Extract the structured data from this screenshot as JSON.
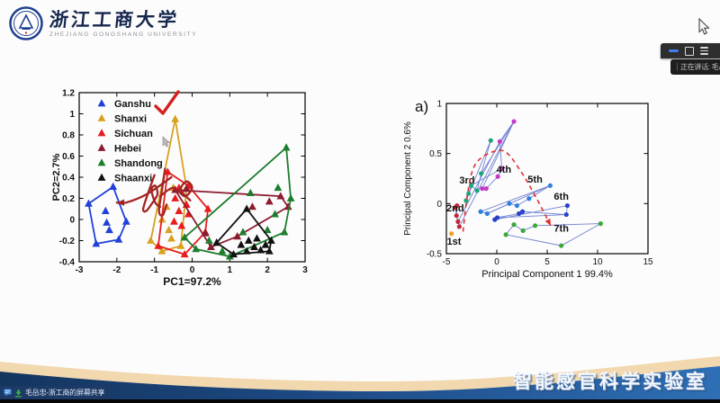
{
  "slide": {
    "logo": {
      "cn": "浙江工商大学",
      "en": "ZHEJIANG GONGSHANG UNIVERSITY"
    },
    "footer_banner": {
      "lab_name": "智能感官科学实验室",
      "colors": {
        "wave_cream": "#f2d8ae",
        "blue_dark": "#14355e",
        "blue_bright": "#2f6fb5"
      }
    }
  },
  "meeting_ui": {
    "toolbar": {
      "minimize_label": "最小化",
      "maximize_label": "最大化",
      "menu_label": "菜单",
      "accent_color": "#3d7ef0"
    },
    "speaking_indicator": {
      "label": "正在讲话: 毛岳",
      "mic_muted": true
    },
    "share_banner": {
      "text": "毛岳忠-浙工商的屏幕共享"
    }
  },
  "chart_data": [
    {
      "id": "province-pca",
      "type": "scatter",
      "xlabel": "PC1=97.2%",
      "ylabel": "PC2=2.7%",
      "xlim": [
        -3,
        3
      ],
      "ylim": [
        -0.4,
        1.2
      ],
      "xticks": [
        "-3",
        "-2",
        "-1",
        "0",
        "1",
        "2",
        "3"
      ],
      "yticks": [
        "-0.4",
        "-0.2",
        "0",
        "0.2",
        "0.4",
        "0.6",
        "0.8",
        "1",
        "1.2"
      ],
      "marker": "triangle",
      "grid": false,
      "legend": {
        "position": "top-left-inside",
        "checkmark_on": "Ganshu",
        "checkmark_color": "#d42020"
      },
      "series": [
        {
          "name": "Ganshu",
          "color": "#2140d9",
          "hull": [
            [
              -2.75,
              0.15
            ],
            [
              -2.1,
              0.31
            ],
            [
              -1.75,
              -0.02
            ],
            [
              -1.95,
              -0.19
            ],
            [
              -2.55,
              -0.23
            ]
          ],
          "points": [
            [
              -2.75,
              0.15
            ],
            [
              -2.1,
              0.31
            ],
            [
              -1.75,
              -0.02
            ],
            [
              -1.95,
              -0.19
            ],
            [
              -2.55,
              -0.23
            ],
            [
              -2.3,
              0.08
            ],
            [
              -2.27,
              -0.03
            ],
            [
              -2.2,
              -0.1
            ]
          ]
        },
        {
          "name": "Shanxi",
          "color": "#d8a11f",
          "hull": [
            [
              -0.45,
              0.95
            ],
            [
              -0.15,
              0.3
            ],
            [
              -0.3,
              -0.25
            ],
            [
              -0.8,
              -0.3
            ],
            [
              -1.1,
              -0.2
            ]
          ],
          "points": [
            [
              -0.45,
              0.95
            ],
            [
              -0.15,
              0.3
            ],
            [
              -0.3,
              -0.25
            ],
            [
              -0.8,
              -0.3
            ],
            [
              -1.1,
              -0.2
            ],
            [
              -0.68,
              0.12
            ],
            [
              -0.8,
              0.0
            ],
            [
              -0.62,
              -0.1
            ],
            [
              -0.5,
              0.3
            ],
            [
              -0.55,
              -0.18
            ]
          ]
        },
        {
          "name": "Sichuan",
          "color": "#e81c1c",
          "hull": [
            [
              -0.65,
              0.45
            ],
            [
              -0.1,
              0.32
            ],
            [
              0.42,
              0.1
            ],
            [
              0.35,
              -0.12
            ],
            [
              -0.2,
              -0.33
            ],
            [
              -0.9,
              -0.25
            ]
          ],
          "points": [
            [
              -0.65,
              0.45
            ],
            [
              -0.1,
              0.32
            ],
            [
              0.42,
              0.1
            ],
            [
              0.35,
              -0.12
            ],
            [
              -0.2,
              -0.33
            ],
            [
              -0.9,
              -0.25
            ],
            [
              -0.45,
              0.2
            ],
            [
              -0.35,
              0.08
            ],
            [
              -0.48,
              -0.02
            ],
            [
              -0.28,
              -0.06
            ],
            [
              -0.15,
              0.14
            ],
            [
              -0.35,
              0.3
            ],
            [
              -0.1,
              0.05
            ]
          ]
        },
        {
          "name": "Hebei",
          "color": "#8d1b30",
          "hull": [
            [
              -0.45,
              0.28
            ],
            [
              2.35,
              0.22
            ],
            [
              2.55,
              0.12
            ],
            [
              1.2,
              -0.16
            ],
            [
              0.5,
              -0.26
            ]
          ],
          "points": [
            [
              -0.45,
              0.28
            ],
            [
              2.35,
              0.22
            ],
            [
              2.55,
              0.12
            ],
            [
              1.2,
              -0.16
            ],
            [
              0.5,
              -0.26
            ],
            [
              1.6,
              0.12
            ],
            [
              2.05,
              0.17
            ],
            [
              0.35,
              -0.13
            ],
            [
              -0.15,
              0.29
            ]
          ]
        },
        {
          "name": "Shandong",
          "color": "#1c7d2d",
          "hull": [
            [
              2.5,
              0.68
            ],
            [
              2.62,
              0.2
            ],
            [
              2.45,
              -0.12
            ],
            [
              1.0,
              -0.35
            ],
            [
              0.1,
              -0.28
            ],
            [
              -0.2,
              -0.17
            ]
          ],
          "points": [
            [
              2.5,
              0.68
            ],
            [
              2.62,
              0.2
            ],
            [
              2.45,
              -0.12
            ],
            [
              1.0,
              -0.35
            ],
            [
              0.1,
              -0.28
            ],
            [
              -0.2,
              -0.17
            ],
            [
              1.55,
              0.25
            ],
            [
              2.28,
              0.3
            ],
            [
              2.2,
              0.05
            ],
            [
              0.45,
              -0.2
            ],
            [
              0.8,
              -0.3
            ],
            [
              1.35,
              -0.12
            ],
            [
              2.0,
              -0.1
            ]
          ]
        },
        {
          "name": "Shaanxi",
          "color": "#101010",
          "hull": [
            [
              1.45,
              0.1
            ],
            [
              2.1,
              -0.2
            ],
            [
              2.05,
              -0.3
            ],
            [
              1.1,
              -0.33
            ],
            [
              0.65,
              -0.22
            ]
          ],
          "points": [
            [
              1.45,
              0.1
            ],
            [
              2.1,
              -0.2
            ],
            [
              2.05,
              -0.3
            ],
            [
              1.1,
              -0.33
            ],
            [
              0.65,
              -0.22
            ],
            [
              1.5,
              -0.2
            ],
            [
              1.65,
              -0.26
            ],
            [
              1.82,
              -0.29
            ],
            [
              1.45,
              -0.3
            ],
            [
              1.72,
              -0.18
            ],
            [
              1.95,
              -0.24
            ],
            [
              1.3,
              -0.24
            ]
          ]
        }
      ],
      "annotations": {
        "handwritten_color": "#a32424",
        "strokes": [
          {
            "points": [
              [
                -1.0,
                0.42
              ],
              [
                -1.18,
                0.24
              ],
              [
                -1.3,
                0.1
              ],
              [
                -1.22,
                0.08
              ],
              [
                -1.05,
                0.16
              ],
              [
                -0.92,
                0.24
              ],
              [
                -0.98,
                0.32
              ],
              [
                -1.08,
                0.28
              ],
              [
                -0.98,
                0.16
              ],
              [
                -0.85,
                0.12
              ]
            ],
            "arrow": false
          },
          {
            "points": [
              [
                -0.72,
                0.48
              ],
              [
                -0.8,
                0.28
              ],
              [
                -0.88,
                0.08
              ],
              [
                -0.78,
                0.04
              ],
              [
                -0.68,
                0.14
              ]
            ],
            "arrow": false
          },
          {
            "points": [
              [
                -0.55,
                0.4
              ],
              [
                -1.2,
                0.24
              ],
              [
                -1.75,
                0.16
              ],
              [
                -2.0,
                0.16
              ]
            ],
            "arrow": true
          },
          {
            "points": [
              [
                -0.85,
                0.22
              ],
              [
                -0.5,
                0.3
              ],
              [
                -0.2,
                0.22
              ],
              [
                0.0,
                0.3
              ],
              [
                -0.15,
                0.36
              ],
              [
                -0.3,
                0.28
              ],
              [
                -0.05,
                0.18
              ]
            ],
            "arrow": false
          }
        ]
      }
    },
    {
      "id": "stage-pca",
      "type": "scatter",
      "panel_label": "a)",
      "xlabel": "Principal Component 1 99.4%",
      "ylabel": "Principal Component 2 0.6%",
      "xlim": [
        -5,
        15
      ],
      "ylim": [
        -0.5,
        1
      ],
      "xticks": [
        "-5",
        "0",
        "5",
        "10",
        "15"
      ],
      "yticks": [
        "-0.5",
        "0",
        "0.5",
        "1"
      ],
      "marker": "dot",
      "grid": false,
      "connector_color": "#7080d0",
      "series": [
        {
          "name": "1st",
          "color": "#f0a424",
          "connect": false,
          "points": [
            [
              -4.5,
              -0.3
            ]
          ]
        },
        {
          "name": "2nd",
          "color": "#c22838",
          "connect": true,
          "points": [
            [
              -4.15,
              -0.04
            ],
            [
              -3.95,
              -0.02
            ],
            [
              -4.0,
              -0.12
            ],
            [
              -3.85,
              -0.18
            ],
            [
              -3.72,
              -0.23
            ]
          ]
        },
        {
          "name": "3rd",
          "color": "#1fa37a",
          "connect": true,
          "points": [
            [
              -3.05,
              0.03
            ],
            [
              -2.8,
              0.1
            ],
            [
              -2.55,
              0.18
            ],
            [
              -1.95,
              0.13
            ],
            [
              -1.55,
              0.3
            ],
            [
              -0.6,
              0.63
            ]
          ]
        },
        {
          "name": "4th",
          "color": "#c838c8",
          "connect": true,
          "points": [
            [
              1.7,
              0.82
            ],
            [
              0.3,
              0.62
            ],
            [
              0.5,
              0.35
            ],
            [
              0.1,
              0.27
            ],
            [
              -1.05,
              0.15
            ],
            [
              -1.45,
              0.15
            ]
          ]
        },
        {
          "name": "5th",
          "color": "#2e7fe0",
          "connect": true,
          "points": [
            [
              5.3,
              0.18
            ],
            [
              3.2,
              0.05
            ],
            [
              2.0,
              -0.02
            ],
            [
              1.25,
              0.0
            ],
            [
              -0.95,
              -0.1
            ],
            [
              -1.6,
              -0.08
            ]
          ]
        },
        {
          "name": "6th",
          "color": "#2840c8",
          "connect": true,
          "points": [
            [
              7.0,
              -0.02
            ],
            [
              6.9,
              -0.11
            ],
            [
              2.55,
              -0.08
            ],
            [
              2.2,
              -0.1
            ],
            [
              0.05,
              -0.14
            ],
            [
              -0.2,
              -0.16
            ]
          ]
        },
        {
          "name": "7th",
          "color": "#3aa83a",
          "connect": true,
          "points": [
            [
              10.3,
              -0.2
            ],
            [
              6.4,
              -0.42
            ],
            [
              0.9,
              -0.31
            ],
            [
              1.7,
              -0.21
            ],
            [
              2.6,
              -0.27
            ],
            [
              3.8,
              -0.22
            ]
          ]
        }
      ],
      "links": [
        [
          [
            -3.85,
            -0.18
          ],
          [
            0.3,
            0.62
          ]
        ],
        [
          [
            -3.72,
            -0.23
          ],
          [
            1.7,
            0.82
          ]
        ],
        [
          [
            -2.55,
            0.18
          ],
          [
            0.5,
            0.35
          ]
        ],
        [
          [
            -1.55,
            0.3
          ],
          [
            1.7,
            0.82
          ]
        ],
        [
          [
            -0.95,
            -0.1
          ],
          [
            5.3,
            0.18
          ]
        ],
        [
          [
            0.05,
            -0.14
          ],
          [
            6.9,
            -0.11
          ]
        ]
      ],
      "stage_labels": [
        {
          "text": "1st",
          "x": -4.95,
          "y": -0.41,
          "anchor": "start"
        },
        {
          "text": "2nd",
          "x": -5.0,
          "y": -0.08,
          "anchor": "start"
        },
        {
          "text": "3rd",
          "x": -2.95,
          "y": 0.2,
          "anchor": "middle"
        },
        {
          "text": "4th",
          "x": 0.7,
          "y": 0.31,
          "anchor": "middle"
        },
        {
          "text": "5th",
          "x": 3.8,
          "y": 0.21,
          "anchor": "middle"
        },
        {
          "text": "6th",
          "x": 6.4,
          "y": 0.04,
          "anchor": "middle"
        },
        {
          "text": "7th",
          "x": 6.4,
          "y": -0.28,
          "anchor": "middle"
        }
      ],
      "trend_arrow": {
        "color": "#e03030",
        "dashed": true,
        "points": [
          [
            -3.35,
            -0.28
          ],
          [
            -2.9,
            0.1
          ],
          [
            -2.2,
            0.38
          ],
          [
            -0.8,
            0.5
          ],
          [
            0.8,
            0.52
          ],
          [
            2.4,
            0.32
          ],
          [
            3.9,
            0.06
          ],
          [
            5.35,
            -0.22
          ]
        ]
      }
    }
  ]
}
